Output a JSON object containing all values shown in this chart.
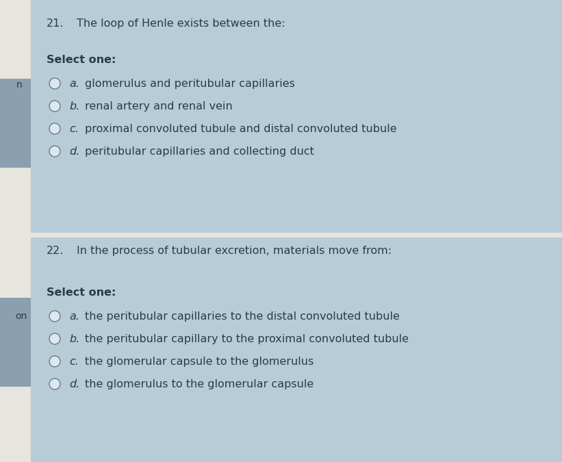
{
  "bg_overall": "#e8e4de",
  "panel_color": "#b8ccd8",
  "sidebar_color": "#8aa0b0",
  "divider_color": "#d0d8e0",
  "font_color": "#2a3a4a",
  "circle_edge_color": "#6a7a8a",
  "circle_fill": "#dce8f0",
  "q1_number": "21.",
  "q1_text": "The loop of Henle exists between the:",
  "q1_select": "Select one:",
  "q1_options": [
    {
      "label": "a.",
      "text": "glomerulus and peritubular capillaries"
    },
    {
      "label": "b.",
      "text": "renal artery and renal vein"
    },
    {
      "label": "c.",
      "text": "proximal convoluted tubule and distal convoluted tubule"
    },
    {
      "label": "d.",
      "text": "peritubular capillaries and collecting duct"
    }
  ],
  "q2_number": "22.",
  "q2_text": "In the process of tubular excretion, materials move from:",
  "q2_select": "Select one:",
  "q2_options": [
    {
      "label": "a.",
      "text": "the peritubular capillaries to the distal convoluted tubule"
    },
    {
      "label": "b.",
      "text": "the peritubular capillary to the proximal convoluted tubule"
    },
    {
      "label": "c.",
      "text": "the glomerular capsule to the glomerulus"
    },
    {
      "label": "d.",
      "text": "the glomerulus to the glomerular capsule"
    }
  ],
  "question_fontsize": 11.5,
  "select_fontsize": 11.5,
  "option_fontsize": 11.5,
  "number_fontsize": 11.5,
  "sidebar_text_on": "on",
  "sidebar_text_n": "n"
}
